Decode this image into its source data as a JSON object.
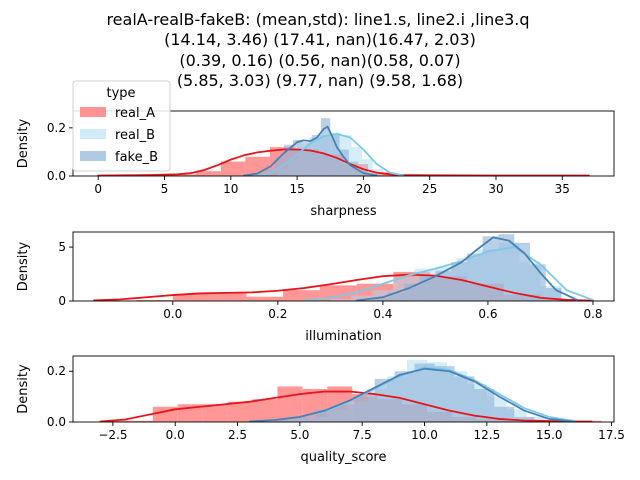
{
  "title_lines": [
    "realA-realB-fakeB: (mean,std): line1.s, line2.i ,line3.q",
    "(14.14, 3.46) (17.41, nan)(16.47, 2.03)",
    "(0.39, 0.16) (0.56, nan)(0.58, 0.07)",
    "(5.85, 3.03) (9.77, nan) (9.58, 1.68)"
  ],
  "colors": {
    "real_A_hist": "#ff8080",
    "real_A_line": "#e8141a",
    "real_B_hist": "#a9dcf3",
    "real_B_line": "#7ec8e8",
    "fake_B_hist": "#8fb3d6",
    "fake_B_line": "#4682b4",
    "overlap": "#9d7f9a"
  },
  "legend": {
    "title": "type",
    "entries": [
      "real_A",
      "real_B",
      "fake_B"
    ]
  },
  "chart_data": [
    {
      "type": "histogram+kde",
      "xlabel": "sharpness",
      "ylabel": "Density",
      "xlim": [
        -1.9,
        38.9
      ],
      "ylim": [
        0,
        0.27
      ],
      "xticks": [
        0,
        5,
        10,
        15,
        20,
        25,
        30,
        35
      ],
      "yticks": [
        0.0,
        0.2
      ],
      "ytick_labels": [
        "0.0",
        "0.2"
      ],
      "series": [
        {
          "name": "real_A",
          "bin_edges": [
            0,
            1.85,
            3.7,
            5.55,
            7.4,
            9.25,
            11.1,
            12.95,
            14.8,
            16.65,
            18.5,
            20.35,
            22.2,
            24.05,
            25.9,
            27.75,
            29.6,
            31.45,
            33.3,
            35.15,
            37.0
          ],
          "densities": [
            0.003,
            0.003,
            0.004,
            0.007,
            0.02,
            0.06,
            0.08,
            0.12,
            0.11,
            0.09,
            0.05,
            0.015,
            0.006,
            0.004,
            0.003,
            0.003,
            0.002,
            0.002,
            0.002,
            0.002
          ],
          "kde_x": [
            0,
            2,
            4,
            6,
            7,
            8,
            9,
            10,
            11,
            12,
            13,
            14,
            15,
            16,
            17,
            18,
            19,
            20,
            21,
            22,
            23,
            25,
            30,
            37
          ],
          "kde_y": [
            0.002,
            0.003,
            0.004,
            0.007,
            0.012,
            0.025,
            0.045,
            0.068,
            0.086,
            0.098,
            0.105,
            0.11,
            0.11,
            0.106,
            0.094,
            0.075,
            0.05,
            0.028,
            0.014,
            0.007,
            0.004,
            0.003,
            0.002,
            0.002
          ]
        },
        {
          "name": "real_B",
          "bin_edges": [
            13.5,
            14.3,
            15.1,
            15.9,
            16.7,
            17.5,
            18.3,
            19.1,
            19.9,
            20.7,
            21.5
          ],
          "densities": [
            0.03,
            0.07,
            0.12,
            0.16,
            0.17,
            0.18,
            0.17,
            0.12,
            0.07,
            0.03
          ],
          "kde_x": [
            12,
            13,
            14,
            15,
            16,
            17,
            18,
            19,
            20,
            21,
            22,
            23
          ],
          "kde_y": [
            0.002,
            0.012,
            0.045,
            0.09,
            0.135,
            0.165,
            0.175,
            0.16,
            0.11,
            0.05,
            0.014,
            0.002
          ]
        },
        {
          "name": "fake_B",
          "bin_edges": [
            11.9,
            12.6,
            13.3,
            14.0,
            14.7,
            15.4,
            16.1,
            16.8,
            17.5,
            18.2,
            18.9,
            19.6,
            20.3
          ],
          "densities": [
            0.01,
            0.03,
            0.08,
            0.13,
            0.15,
            0.14,
            0.17,
            0.24,
            0.17,
            0.11,
            0.06,
            0.02
          ],
          "kde_x": [
            11,
            12,
            13,
            14,
            15,
            15.5,
            16,
            16.5,
            17,
            17.3,
            17.6,
            18,
            18.5,
            19,
            20,
            21
          ],
          "kde_y": [
            0.002,
            0.01,
            0.04,
            0.095,
            0.14,
            0.148,
            0.145,
            0.16,
            0.195,
            0.205,
            0.17,
            0.12,
            0.08,
            0.045,
            0.012,
            0.002
          ]
        }
      ]
    },
    {
      "type": "histogram+kde",
      "xlabel": "illumination",
      "ylabel": "Density",
      "xlim": [
        -0.19,
        0.84
      ],
      "ylim": [
        0,
        6.4
      ],
      "xticks": [
        0.0,
        0.2,
        0.4,
        0.6,
        0.8
      ],
      "xtick_labels": [
        "0.0",
        "0.2",
        "0.4",
        "0.6",
        "0.8"
      ],
      "yticks": [
        0,
        5
      ],
      "ytick_labels": [
        "0",
        "5"
      ],
      "series": [
        {
          "name": "real_A",
          "bin_edges": [
            -0.14,
            -0.07,
            0.0,
            0.07,
            0.14,
            0.21,
            0.28,
            0.35,
            0.42,
            0.49,
            0.56,
            0.63,
            0.7,
            0.77,
            0.84
          ],
          "densities": [
            0.05,
            0.1,
            0.65,
            0.75,
            0.4,
            1.0,
            1.45,
            1.6,
            2.7,
            2.3,
            1.6,
            0.6,
            0.2,
            0.05
          ],
          "kde_x": [
            -0.15,
            -0.1,
            -0.05,
            0.0,
            0.05,
            0.1,
            0.15,
            0.2,
            0.25,
            0.3,
            0.35,
            0.4,
            0.45,
            0.5,
            0.55,
            0.6,
            0.65,
            0.7,
            0.75,
            0.8
          ],
          "kde_y": [
            0.05,
            0.15,
            0.35,
            0.55,
            0.7,
            0.75,
            0.8,
            0.95,
            1.2,
            1.55,
            1.95,
            2.3,
            2.45,
            2.35,
            1.95,
            1.35,
            0.75,
            0.3,
            0.1,
            0.03
          ]
        },
        {
          "name": "real_B",
          "bin_edges": [
            0.3,
            0.34,
            0.38,
            0.42,
            0.46,
            0.5,
            0.54,
            0.58,
            0.62,
            0.66,
            0.7,
            0.74
          ],
          "densities": [
            0.2,
            0.5,
            1.0,
            2.2,
            3.0,
            3.2,
            4.0,
            4.8,
            5.4,
            3.6,
            1.4
          ],
          "kde_x": [
            0.25,
            0.3,
            0.35,
            0.4,
            0.45,
            0.5,
            0.55,
            0.6,
            0.65,
            0.7,
            0.75,
            0.8
          ],
          "kde_y": [
            0.05,
            0.3,
            0.8,
            1.6,
            2.4,
            3.0,
            3.7,
            4.6,
            5.0,
            3.4,
            1.0,
            0.1
          ]
        },
        {
          "name": "fake_B",
          "bin_edges": [
            0.38,
            0.41,
            0.44,
            0.47,
            0.5,
            0.53,
            0.56,
            0.59,
            0.62,
            0.65,
            0.68,
            0.71,
            0.74
          ],
          "densities": [
            0.3,
            0.8,
            1.6,
            2.4,
            2.8,
            3.6,
            4.4,
            6.0,
            6.2,
            5.4,
            3.4,
            1.2
          ],
          "kde_x": [
            0.35,
            0.4,
            0.45,
            0.5,
            0.55,
            0.58,
            0.61,
            0.64,
            0.67,
            0.7,
            0.73,
            0.77
          ],
          "kde_y": [
            0.05,
            0.35,
            1.2,
            2.3,
            3.6,
            4.8,
            5.9,
            5.6,
            4.4,
            2.6,
            1.0,
            0.1
          ]
        }
      ]
    },
    {
      "type": "histogram+kde",
      "xlabel": "quality_score",
      "ylabel": "Density",
      "xlim": [
        -4.1,
        17.6
      ],
      "ylim": [
        0,
        0.26
      ],
      "xticks": [
        -2.5,
        0.0,
        2.5,
        5.0,
        7.5,
        10.0,
        12.5,
        15.0,
        17.5
      ],
      "xtick_labels": [
        "−2.5",
        "0.0",
        "2.5",
        "5.0",
        "7.5",
        "10.0",
        "12.5",
        "15.0",
        "17.5"
      ],
      "yticks": [
        0.0,
        0.2
      ],
      "ytick_labels": [
        "0.0",
        "0.2"
      ],
      "series": [
        {
          "name": "real_A",
          "bin_edges": [
            -2.9,
            -1.9,
            -0.9,
            0.1,
            1.1,
            2.1,
            3.1,
            4.1,
            5.1,
            6.1,
            7.1,
            8.1,
            9.1,
            10.1,
            11.1,
            12.1,
            13.1,
            14.1,
            15.1,
            16.1,
            17.1
          ],
          "densities": [
            0.005,
            0.005,
            0.06,
            0.07,
            0.07,
            0.08,
            0.09,
            0.14,
            0.13,
            0.14,
            0.11,
            0.09,
            0.07,
            0.04,
            0.02,
            0.01,
            0.005,
            0.005,
            0.005,
            0.005
          ],
          "kde_x": [
            -3,
            -2,
            -1,
            0,
            1,
            2,
            3,
            4,
            5,
            6,
            7,
            8,
            9,
            10,
            11,
            12,
            13,
            14,
            15,
            16,
            16.7
          ],
          "kde_y": [
            0.002,
            0.01,
            0.03,
            0.05,
            0.06,
            0.07,
            0.08,
            0.095,
            0.11,
            0.12,
            0.12,
            0.11,
            0.095,
            0.07,
            0.045,
            0.025,
            0.012,
            0.006,
            0.004,
            0.002,
            0.002
          ]
        },
        {
          "name": "real_B",
          "bin_edges": [
            4.5,
            5.3,
            6.1,
            6.9,
            7.7,
            8.5,
            9.3,
            10.1,
            10.9,
            11.7,
            12.5,
            13.3,
            14.1,
            14.9
          ],
          "densities": [
            0.01,
            0.02,
            0.05,
            0.08,
            0.13,
            0.18,
            0.245,
            0.235,
            0.2,
            0.15,
            0.1,
            0.05,
            0.02
          ],
          "kde_x": [
            3,
            4,
            5,
            6,
            7,
            8,
            9,
            10,
            11,
            12,
            13,
            14,
            15,
            16
          ],
          "kde_y": [
            0.002,
            0.008,
            0.02,
            0.04,
            0.08,
            0.13,
            0.18,
            0.215,
            0.205,
            0.165,
            0.11,
            0.055,
            0.02,
            0.004
          ]
        },
        {
          "name": "fake_B",
          "bin_edges": [
            4.0,
            4.8,
            5.6,
            6.4,
            7.2,
            8.0,
            8.8,
            9.6,
            10.4,
            11.2,
            12.0,
            12.8,
            13.6,
            14.4
          ],
          "densities": [
            0.01,
            0.02,
            0.05,
            0.07,
            0.1,
            0.17,
            0.2,
            0.23,
            0.22,
            0.18,
            0.13,
            0.06,
            0.02
          ],
          "kde_x": [
            3,
            4,
            5,
            6,
            7,
            8,
            9,
            10,
            11,
            12,
            13,
            14,
            15,
            16
          ],
          "kde_y": [
            0.002,
            0.008,
            0.02,
            0.045,
            0.085,
            0.135,
            0.185,
            0.21,
            0.2,
            0.16,
            0.1,
            0.045,
            0.012,
            0.002
          ]
        }
      ]
    }
  ]
}
